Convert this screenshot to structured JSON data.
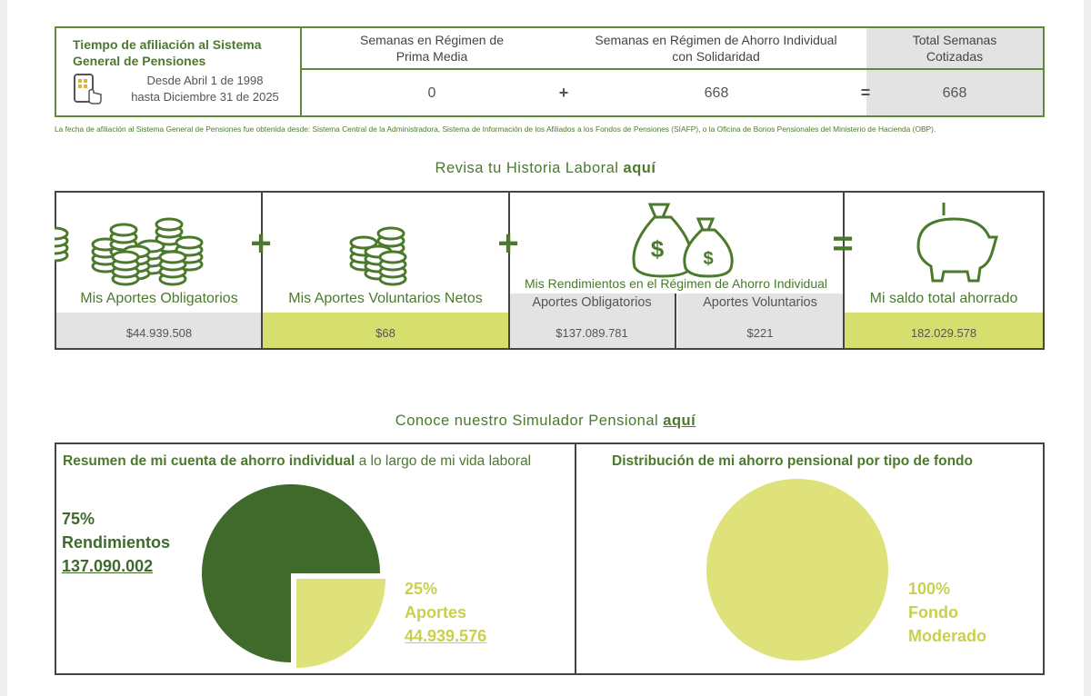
{
  "header": {
    "title": "Tiempo de afiliación al Sistema General de Pensiones",
    "period_from": "Desde Abril 1 de 1998",
    "period_to": "hasta Diciembre 31 de 2025"
  },
  "weeks": {
    "columns": [
      "Semanas en Régimen de Prima Media",
      "Semanas en Régimen de Ahorro Individual con Solidaridad",
      "Total Semanas Cotizadas"
    ],
    "values": [
      0,
      668,
      668
    ],
    "operators": [
      "+",
      "="
    ]
  },
  "note": "La fecha de afiliación al Sistema General de Pensiones fue obtenida desde: Sistema Central de la Administradora, Sistema de Información de los Afiliados a los Fondos de Pensiones (SIAFP), o la Oficina de Bonos Pensionales del Ministerio de Hacienda (OBP).",
  "history_link": {
    "text": "Revisa tu Historia Laboral",
    "link": "aquí"
  },
  "savings": {
    "returns_title": "Mis Rendimientos en el Régimen de Ahorro Individual",
    "operators": [
      "+",
      "+",
      "="
    ],
    "items": [
      {
        "label": "Mis Aportes Obligatorios",
        "value": "$44.939.508"
      },
      {
        "label": "Mis Aportes Voluntarios Netos",
        "value": "$68"
      },
      {
        "label": "Aportes Obligatorios",
        "value": "$137.089.781"
      },
      {
        "label": "Aportes Voluntarios",
        "value": "$221"
      },
      {
        "label": "Mi saldo total ahorrado",
        "value": "182.029.578"
      }
    ]
  },
  "simulator_link": {
    "text": "Conoce nuestro Simulador Pensional",
    "link": "aquí"
  },
  "chart_data": [
    {
      "type": "pie",
      "title": "Resumen de mi cuenta de ahorro individual",
      "subtitle": "a lo largo de mi vida laboral",
      "categories": [
        "Rendimientos",
        "Aportes"
      ],
      "values": [
        75,
        25
      ],
      "value_labels": [
        "75%",
        "25%"
      ],
      "amounts": [
        "137.090.002",
        "44.939.576"
      ],
      "colors": [
        "#3f6a2b",
        "#dfe27a"
      ]
    },
    {
      "type": "pie",
      "title": "Distribución de mi ahorro pensional por tipo de fondo",
      "categories": [
        "Fondo Moderado"
      ],
      "values": [
        100
      ],
      "value_labels": [
        "100%"
      ],
      "colors": [
        "#dfe27a"
      ]
    }
  ]
}
